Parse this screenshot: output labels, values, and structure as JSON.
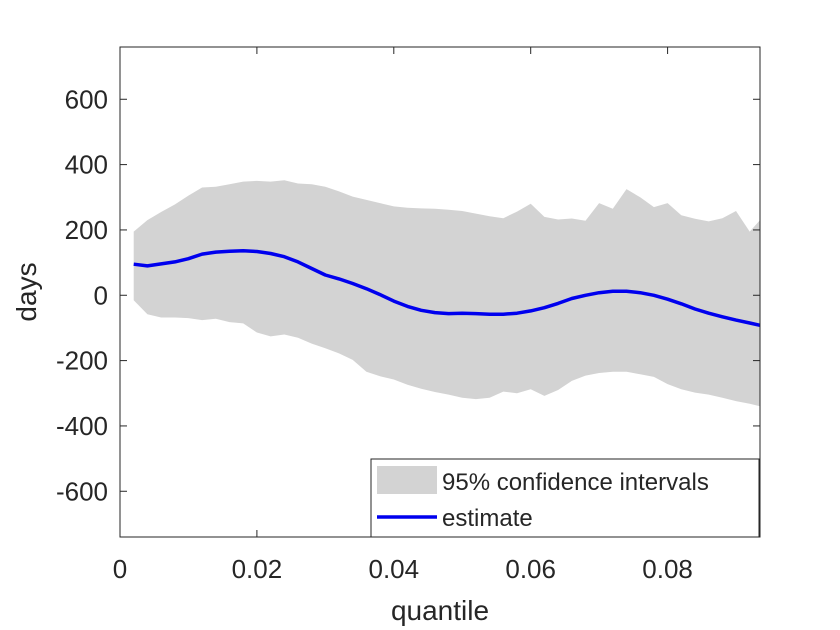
{
  "chart_data": {
    "type": "area",
    "title": "",
    "xlabel": "quantile",
    "ylabel": "days",
    "xlim": [
      0,
      0.0935
    ],
    "ylim": [
      -740,
      760
    ],
    "xticks": [
      0,
      0.02,
      0.04,
      0.06,
      0.08
    ],
    "xtick_labels": [
      "0",
      "0.02",
      "0.04",
      "0.06",
      "0.08"
    ],
    "yticks": [
      -600,
      -400,
      -200,
      0,
      200,
      400,
      600
    ],
    "ytick_labels": [
      "-600",
      "-400",
      "-200",
      "0",
      "200",
      "400",
      "600"
    ],
    "grid": false,
    "legend_position": "bottom-right",
    "colors": {
      "band": "#d3d3d3",
      "line": "#0000ee",
      "axes": "#262626"
    },
    "series": [
      {
        "name": "95% confidence intervals",
        "kind": "band",
        "x": [
          0.002,
          0.004,
          0.006,
          0.008,
          0.01,
          0.012,
          0.014,
          0.016,
          0.018,
          0.02,
          0.022,
          0.024,
          0.026,
          0.028,
          0.03,
          0.032,
          0.034,
          0.036,
          0.038,
          0.04,
          0.042,
          0.044,
          0.046,
          0.048,
          0.05,
          0.052,
          0.054,
          0.056,
          0.058,
          0.06,
          0.062,
          0.064,
          0.066,
          0.068,
          0.07,
          0.072,
          0.074,
          0.076,
          0.078,
          0.08,
          0.082,
          0.084,
          0.086,
          0.088,
          0.09,
          0.092,
          0.0935
        ],
        "upper": [
          195,
          230,
          255,
          278,
          305,
          330,
          332,
          340,
          348,
          350,
          348,
          352,
          342,
          340,
          332,
          318,
          302,
          292,
          282,
          272,
          268,
          266,
          265,
          262,
          258,
          250,
          242,
          236,
          256,
          280,
          240,
          232,
          235,
          228,
          282,
          265,
          325,
          300,
          270,
          282,
          245,
          234,
          226,
          236,
          258,
          195,
          230
        ],
        "lower": [
          -15,
          -58,
          -68,
          -68,
          -70,
          -76,
          -72,
          -82,
          -86,
          -114,
          -126,
          -120,
          -130,
          -148,
          -162,
          -178,
          -198,
          -234,
          -248,
          -258,
          -274,
          -286,
          -296,
          -304,
          -314,
          -318,
          -314,
          -295,
          -300,
          -288,
          -308,
          -290,
          -262,
          -246,
          -238,
          -234,
          -234,
          -242,
          -250,
          -272,
          -288,
          -298,
          -304,
          -314,
          -324,
          -332,
          -340
        ]
      },
      {
        "name": "estimate",
        "kind": "line",
        "x": [
          0.002,
          0.004,
          0.006,
          0.008,
          0.01,
          0.012,
          0.014,
          0.016,
          0.018,
          0.02,
          0.022,
          0.024,
          0.026,
          0.028,
          0.03,
          0.032,
          0.034,
          0.036,
          0.038,
          0.04,
          0.042,
          0.044,
          0.046,
          0.048,
          0.05,
          0.052,
          0.054,
          0.056,
          0.058,
          0.06,
          0.062,
          0.064,
          0.066,
          0.068,
          0.07,
          0.072,
          0.074,
          0.076,
          0.078,
          0.08,
          0.082,
          0.084,
          0.086,
          0.088,
          0.09,
          0.092,
          0.0935
        ],
        "values": [
          95,
          90,
          96,
          102,
          112,
          126,
          132,
          135,
          136,
          134,
          128,
          118,
          102,
          82,
          62,
          50,
          36,
          20,
          2,
          -18,
          -34,
          -46,
          -53,
          -56,
          -55,
          -56,
          -58,
          -58,
          -55,
          -48,
          -38,
          -25,
          -10,
          0,
          8,
          12,
          12,
          8,
          0,
          -12,
          -26,
          -42,
          -55,
          -66,
          -76,
          -85,
          -92
        ]
      }
    ]
  }
}
